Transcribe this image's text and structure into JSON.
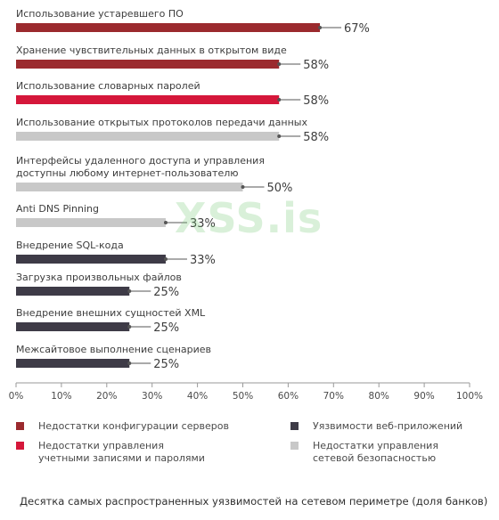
{
  "chart_data": {
    "type": "bar",
    "orientation": "horizontal",
    "categories": [
      "Использование устаревшего ПО",
      "Хранение чувствительных данных в открытом виде",
      "Использование словарных паролей",
      "Использование открытых протоколов передачи данных",
      "Интерфейсы удаленного доступа и управления\nдоступны любому интернет-пользователю",
      "Anti DNS Pinning",
      "Внедрение SQL-кода",
      "Загрузка произвольных файлов",
      "Внедрение внешних сущностей XML",
      "Межсайтовое выполнение сценариев"
    ],
    "values": [
      67,
      58,
      58,
      58,
      50,
      33,
      33,
      25,
      25,
      25
    ],
    "value_labels": [
      "67%",
      "58%",
      "58%",
      "58%",
      "50%",
      "33%",
      "33%",
      "25%",
      "25%",
      "25%"
    ],
    "group": [
      0,
      0,
      1,
      2,
      2,
      2,
      3,
      3,
      3,
      3
    ],
    "groups": [
      {
        "name": "Недостатки конфигурации серверов",
        "color": "#9b2a2e"
      },
      {
        "name": "Недостатки управления\nучетными записями и паролями",
        "color": "#d5173a"
      },
      {
        "name": "Недостатки управления\nсетевой безопасностью",
        "color": "#c8c8c8"
      },
      {
        "name": "Уязвимости веб-приложений",
        "color": "#3e3b47"
      }
    ],
    "xticks": [
      "0%",
      "10%",
      "20%",
      "30%",
      "40%",
      "50%",
      "60%",
      "70%",
      "80%",
      "90%",
      "100%"
    ],
    "xlim": [
      0,
      100
    ],
    "grid": false,
    "legend_position": "bottom"
  },
  "legend": {
    "items": [
      {
        "label": "Недостатки конфигурации серверов",
        "color": "#9b2a2e"
      },
      {
        "label": "Уязвимости веб-приложений",
        "color": "#3e3b47"
      },
      {
        "label": "Недостатки управления\nучетными записями и паролями",
        "color": "#d5173a"
      },
      {
        "label": "Недостатки управления\nсетевой безопасностью",
        "color": "#c8c8c8"
      }
    ]
  },
  "caption": "Десятка самых распространенных уязвимостей на сетевом периметре (доля банков)",
  "watermark": "XSS.is"
}
